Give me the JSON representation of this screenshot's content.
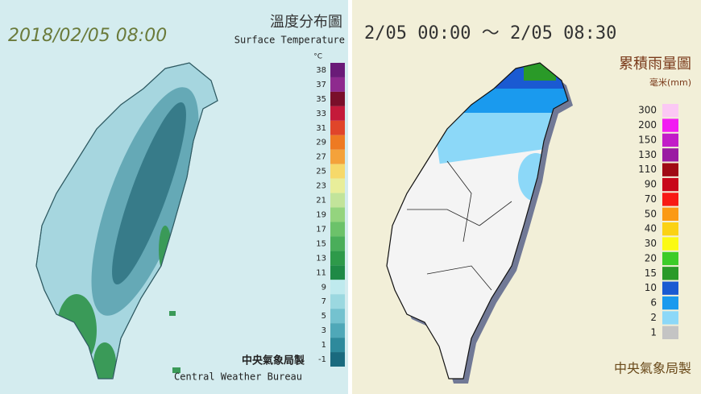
{
  "left_panel": {
    "datetime": "2018/02/05 08:00",
    "title": "溫度分布圖",
    "subtitle": "Surface Temperature",
    "unit": "°C",
    "legend": [
      {
        "label": 38,
        "color": "#6a1b78"
      },
      {
        "label": 37,
        "color": "#8e2a8e"
      },
      {
        "label": 35,
        "color": "#7a0f2a"
      },
      {
        "label": 33,
        "color": "#c41a3a"
      },
      {
        "label": 31,
        "color": "#e0452a"
      },
      {
        "label": 29,
        "color": "#ee7a22"
      },
      {
        "label": 27,
        "color": "#f4a23a"
      },
      {
        "label": 25,
        "color": "#f6d96a"
      },
      {
        "label": 23,
        "color": "#e8ee9a"
      },
      {
        "label": 21,
        "color": "#c2e49a"
      },
      {
        "label": 19,
        "color": "#94d47e"
      },
      {
        "label": 17,
        "color": "#6cc26a"
      },
      {
        "label": 15,
        "color": "#4aae5a"
      },
      {
        "label": 13,
        "color": "#2e9a4a"
      },
      {
        "label": 11,
        "color": "#1f8a46"
      },
      {
        "label": 9,
        "color": "#bfeaee"
      },
      {
        "label": 7,
        "color": "#9bd8e0"
      },
      {
        "label": 5,
        "color": "#74c2cf"
      },
      {
        "label": 3,
        "color": "#4fa8b8"
      },
      {
        "label": 1,
        "color": "#2e8a9c"
      },
      {
        "label": -1,
        "color": "#1a6a7e"
      }
    ],
    "footer_zh": "中央氣象局製",
    "footer_en": "Central Weather Bureau"
  },
  "right_panel": {
    "datetime": "2/05 00:00 ～ 2/05 08:30",
    "title": "累積雨量圖",
    "unit": "毫米(mm)",
    "legend": [
      {
        "label": 300,
        "color": "#fbc8f4"
      },
      {
        "label": 200,
        "color": "#f21cf2"
      },
      {
        "label": 150,
        "color": "#c21cc8"
      },
      {
        "label": 130,
        "color": "#9a1aa2"
      },
      {
        "label": 110,
        "color": "#a00a14"
      },
      {
        "label": 90,
        "color": "#c8081a"
      },
      {
        "label": 70,
        "color": "#f81a14"
      },
      {
        "label": 50,
        "color": "#fb9a14"
      },
      {
        "label": 40,
        "color": "#fbd214"
      },
      {
        "label": 30,
        "color": "#fbfa14"
      },
      {
        "label": 20,
        "color": "#3ccc28"
      },
      {
        "label": 15,
        "color": "#2a9a28"
      },
      {
        "label": 10,
        "color": "#1a5ad2"
      },
      {
        "label": 6,
        "color": "#1a9aee"
      },
      {
        "label": 2,
        "color": "#8cd8f8"
      },
      {
        "label": 1,
        "color": "#c4c4c4"
      }
    ],
    "footer_zh": "中央氣象局製"
  }
}
